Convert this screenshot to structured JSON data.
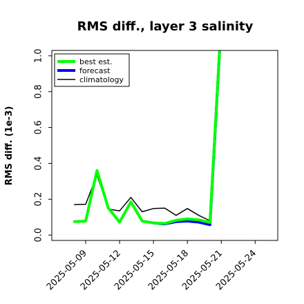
{
  "chart_data": {
    "type": "line",
    "title": "RMS diff., layer 3 salinity",
    "xlabel": "",
    "ylabel": "RMS diff. (1e-3)",
    "ylim": [
      -0.03,
      1.03
    ],
    "xlim": [
      "2025-05-06",
      "2025-05-26"
    ],
    "y_ticks": [
      "0.0",
      "0.2",
      "0.4",
      "0.6",
      "0.8",
      "1.0"
    ],
    "x_ticks": [
      "2025-05-09",
      "2025-05-12",
      "2025-05-15",
      "2025-05-18",
      "2025-05-21",
      "2025-05-24"
    ],
    "highlight_tick": "2025-05-15",
    "highlight_color": "#228b22",
    "legend_position": "upper left",
    "grid": false,
    "series": [
      {
        "name": "best est.",
        "color": "#00ff00",
        "line_width": "thick",
        "x": [
          "2025-05-08",
          "2025-05-09",
          "2025-05-10",
          "2025-05-11",
          "2025-05-12",
          "2025-05-13",
          "2025-05-14",
          "2025-05-15"
        ],
        "values": [
          0.075,
          0.078,
          0.36,
          0.15,
          0.072,
          0.185,
          0.078,
          0.068
        ]
      },
      {
        "name": "forecast",
        "color": "#0000ff",
        "line_width": "thick",
        "x": [
          "2025-05-15",
          "2025-05-16",
          "2025-05-17",
          "2025-05-18",
          "2025-05-19",
          "2025-05-20",
          "2025-05-21"
        ],
        "values": [
          0.068,
          0.062,
          0.075,
          0.078,
          0.072,
          0.058,
          1.2
        ]
      },
      {
        "name": "climatology",
        "color": "#000000",
        "line_width": "thin",
        "x": [
          "2025-05-08",
          "2025-05-09",
          "2025-05-10",
          "2025-05-11",
          "2025-05-12",
          "2025-05-13",
          "2025-05-14",
          "2025-05-15",
          "2025-05-16",
          "2025-05-17",
          "2025-05-18",
          "2025-05-19",
          "2025-05-20",
          "2025-05-21"
        ],
        "values": [
          0.17,
          0.172,
          0.335,
          0.145,
          0.135,
          0.21,
          0.13,
          0.148,
          0.15,
          0.11,
          0.148,
          0.11,
          0.08,
          1.2
        ]
      },
      {
        "name": "",
        "color": "#00ff00",
        "line_width": "thick",
        "x": [
          "2025-05-15",
          "2025-05-16",
          "2025-05-17",
          "2025-05-18",
          "2025-05-19",
          "2025-05-20",
          "2025-05-21"
        ],
        "values": [
          0.068,
          0.065,
          0.082,
          0.09,
          0.085,
          0.07,
          1.2
        ]
      }
    ]
  }
}
